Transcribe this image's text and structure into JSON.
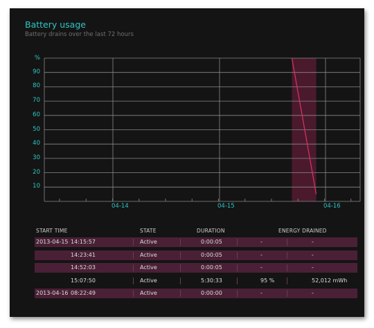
{
  "header": {
    "title": "Battery usage",
    "subtitle": "Battery drains over the last 72 hours"
  },
  "chart_data": {
    "type": "line",
    "title": "Battery usage",
    "subtitle": "Battery drains over the last 72 hours",
    "ylabel": "%",
    "ylim": [
      0,
      100
    ],
    "yticks": [
      "90",
      "80",
      "70",
      "60",
      "50",
      "40",
      "30",
      "20",
      "10"
    ],
    "xticks": [
      "04-14",
      "04-15",
      "04-16"
    ],
    "grid": true,
    "series": [
      {
        "points": [
          [
            "2013-04-15 15:07:50",
            100
          ],
          [
            "2013-04-15 20:38:23",
            5
          ]
        ]
      }
    ],
    "highlight": {
      "start": "2013-04-15 15:07:50",
      "end": "2013-04-15 20:38:23"
    }
  },
  "table": {
    "headers": [
      "START TIME",
      "STATE",
      "DURATION",
      "ENERGY DRAINED"
    ],
    "rows": [
      {
        "date": "2013-04-15",
        "time": "14:15:57",
        "state": "Active",
        "duration": "0:00:05",
        "percent": "-",
        "energy": "-",
        "highlight": true
      },
      {
        "date": "",
        "time": "14:23:41",
        "state": "Active",
        "duration": "0:00:05",
        "percent": "-",
        "energy": "-",
        "highlight": true
      },
      {
        "date": "",
        "time": "14:52:03",
        "state": "Active",
        "duration": "0:00:05",
        "percent": "-",
        "energy": "-",
        "highlight": true
      },
      {
        "date": "",
        "time": "15:07:50",
        "state": "Active",
        "duration": "5:30:33",
        "percent": "95 %",
        "energy": "52,012 mWh",
        "highlight": false
      },
      {
        "date": "2013-04-16",
        "time": "08:22:49",
        "state": "Active",
        "duration": "0:00:00",
        "percent": "-",
        "energy": "-",
        "highlight": true
      }
    ]
  },
  "colors": {
    "accent": "#2dc7c4",
    "line": "#d0325e",
    "highlight_band": "#4a1a2c",
    "row_highlight": "#4a2036"
  }
}
